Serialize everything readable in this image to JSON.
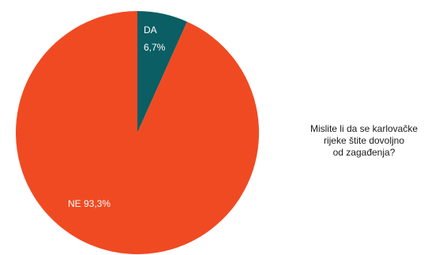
{
  "chart_data": {
    "type": "pie",
    "title": "Mislite li da se karlovačke\nrijeke štite dovoljno\nod zagađenja?",
    "slices": [
      {
        "label": "DA",
        "value_text": "6,7%",
        "value": 6.7,
        "color": "#0b5e63"
      },
      {
        "label": "NE",
        "value_text": "93,3%",
        "value": 93.3,
        "color": "#f04a23"
      }
    ],
    "start_angle_deg": 0,
    "direction": "clockwise"
  }
}
